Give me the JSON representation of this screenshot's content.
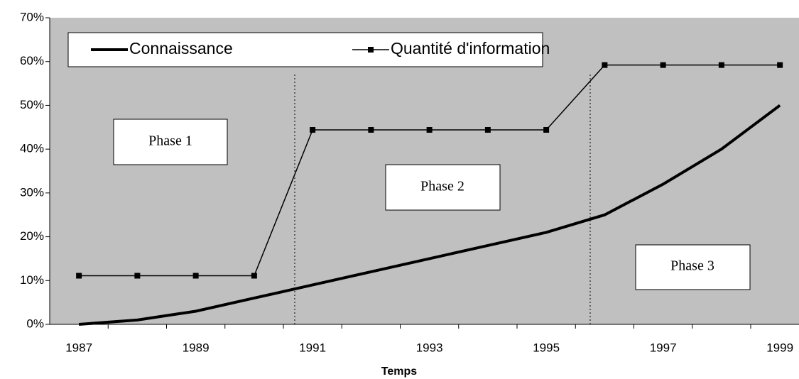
{
  "chart_data": {
    "type": "line",
    "x_label": "Temps",
    "categories": [
      "1987",
      null,
      "1989",
      null,
      "1991",
      null,
      "1993",
      null,
      "1995",
      null,
      "1997",
      null,
      "1999"
    ],
    "series": [
      {
        "name": "Connaissance",
        "color": "#000000",
        "marker": false,
        "values": [
          0,
          1,
          3,
          6,
          9,
          12,
          15,
          18,
          21,
          25,
          32,
          40,
          50
        ]
      },
      {
        "name": "Quantité d'information",
        "color": "#000000",
        "marker": true,
        "values": [
          11.1,
          11.1,
          11.1,
          11.1,
          44.4,
          44.4,
          44.4,
          44.4,
          44.4,
          59.2,
          59.2,
          59.2,
          59.2
        ]
      }
    ],
    "ylim": [
      0,
      70
    ],
    "yticks": [
      {
        "value": 0,
        "label": "0%"
      },
      {
        "value": 10,
        "label": "10%"
      },
      {
        "value": 20,
        "label": "20%"
      },
      {
        "value": 30,
        "label": "30%"
      },
      {
        "value": 40,
        "label": "40%"
      },
      {
        "value": 50,
        "label": "50%"
      },
      {
        "value": 60,
        "label": "60%"
      },
      {
        "value": 70,
        "label": "70%"
      }
    ],
    "annotations": [
      "Phase 1",
      "Phase 2",
      "Phase 3"
    ],
    "legend": "top-left"
  }
}
